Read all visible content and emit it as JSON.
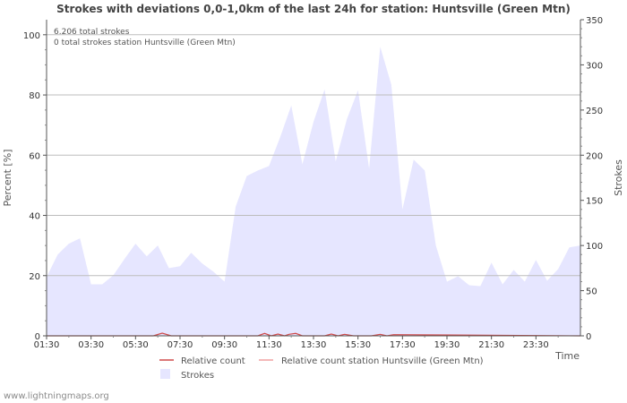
{
  "chart_data": {
    "type": "area",
    "title": "Strokes with deviations 0,0-1,0km of the last 24h for station: Huntsville (Green Mtn)",
    "info_lines": [
      "6.206 total strokes",
      "0 total strokes station Huntsville (Green Mtn)"
    ],
    "xlabel": "Time",
    "ylabel_left": "Percent   [%]",
    "ylabel_right": "Strokes",
    "x_ticks": [
      "01:30",
      "03:30",
      "05:30",
      "07:30",
      "09:30",
      "11:30",
      "13:30",
      "15:30",
      "17:30",
      "19:30",
      "21:30",
      "23:30"
    ],
    "y_left_ticks": [
      "0",
      "20",
      "40",
      "60",
      "80",
      "100"
    ],
    "y_right_ticks": [
      "0",
      "50",
      "100",
      "150",
      "200",
      "250",
      "300",
      "350"
    ],
    "ylim_left": [
      0,
      105
    ],
    "ylim_right": [
      0,
      350
    ],
    "strokes_x_hours": [
      0,
      0.5,
      1,
      1.5,
      2,
      2.5,
      3,
      3.5,
      4,
      4.5,
      5,
      5.5,
      6,
      6.5,
      7,
      7.5,
      8,
      8.5,
      9,
      9.5,
      10,
      10.5,
      11,
      11.5,
      12,
      12.5,
      13,
      13.5,
      14,
      14.5,
      15,
      15.5,
      16,
      16.5,
      17,
      17.5,
      18,
      18.5,
      19,
      19.5,
      20,
      20.5,
      21,
      21.5,
      22,
      22.5,
      23,
      23.5,
      24
    ],
    "strokes_values": [
      65,
      90,
      102,
      108,
      57,
      57,
      67,
      85,
      102,
      88,
      100,
      75,
      77,
      92,
      80,
      71,
      60,
      143,
      177,
      183,
      188,
      220,
      255,
      190,
      237,
      273,
      193,
      240,
      272,
      185,
      320,
      278,
      140,
      195,
      183,
      100,
      60,
      66,
      56,
      55,
      81,
      57,
      73,
      60,
      84,
      61,
      74,
      98,
      100
    ],
    "relative_count_x_hours": [
      0,
      4.8,
      5.2,
      5.6,
      9.5,
      9.8,
      10.1,
      10.4,
      10.7,
      10.9,
      11.2,
      11.5,
      12.5,
      12.8,
      13.1,
      13.4,
      13.8,
      14.6,
      15,
      15.3,
      15.6,
      24
    ],
    "relative_count_values": [
      0,
      0,
      0.9,
      0,
      0,
      0.8,
      0,
      0.6,
      0,
      0.5,
      0.8,
      0,
      0,
      0.6,
      0,
      0.5,
      0,
      0,
      0.5,
      0,
      0.4,
      0
    ],
    "legend": [
      {
        "label": "Relative count",
        "color": "#d04a4a"
      },
      {
        "label": "Relative count station Huntsville (Green Mtn)",
        "color": "#f0a0a0"
      },
      {
        "label": "Strokes",
        "color": "#e6e6ff"
      }
    ]
  },
  "footer": "www.lightningmaps.org"
}
